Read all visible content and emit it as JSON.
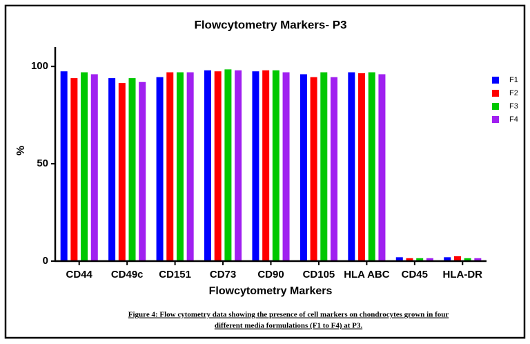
{
  "chart_data": {
    "type": "bar",
    "title": "Flowcytometry Markers- P3",
    "x_label": "Flowcytometry Markers",
    "y_label": "%",
    "categories": [
      "CD44",
      "CD49c",
      "CD151",
      "CD73",
      "CD90",
      "CD105",
      "HLA ABC",
      "CD45",
      "HLA-DR"
    ],
    "series": [
      {
        "name": "F1",
        "color": "#0000ff",
        "values": [
          97.5,
          94,
          94.5,
          98,
          97.5,
          96,
          97,
          2,
          2
        ]
      },
      {
        "name": "F2",
        "color": "#ff0000",
        "values": [
          94,
          91.5,
          97,
          97.5,
          98,
          94.5,
          96.5,
          1.5,
          2.5
        ]
      },
      {
        "name": "F3",
        "color": "#00c800",
        "values": [
          97,
          94,
          97,
          98.5,
          98,
          97,
          97,
          1.5,
          1.5
        ]
      },
      {
        "name": "F4",
        "color": "#a020f0",
        "values": [
          96,
          92,
          97,
          98,
          97,
          94.5,
          96,
          1.5,
          1.5
        ]
      }
    ],
    "ylim": [
      0,
      110
    ],
    "yticks": [
      0,
      50,
      100
    ],
    "legend": "right",
    "caption": [
      "Figure 4: Flow cytometry data showing the presence of cell markers on chondrocytes grown in four",
      "different media formulations (F1 to F4) at P3."
    ]
  }
}
